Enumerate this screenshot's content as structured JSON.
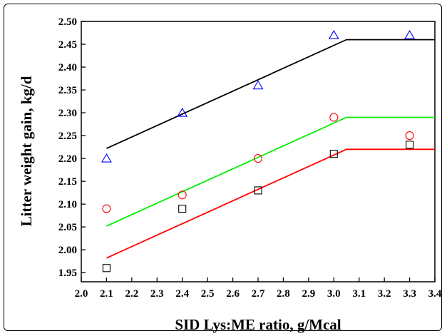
{
  "chart_data": {
    "type": "scatter",
    "xlabel": "SID Lys:ME ratio, g/Mcal",
    "ylabel": "Litter weight gain, kg/d",
    "xlim": [
      2.0,
      3.4
    ],
    "ylim": [
      1.93,
      2.5
    ],
    "x_ticks": [
      "2.0",
      "2.1",
      "2.2",
      "2.3",
      "2.4",
      "2.5",
      "2.6",
      "2.7",
      "2.8",
      "2.9",
      "3.0",
      "3.1",
      "3.2",
      "3.3",
      "3.4"
    ],
    "y_ticks": [
      "1.95",
      "2.00",
      "2.05",
      "2.10",
      "2.15",
      "2.20",
      "2.25",
      "2.30",
      "2.35",
      "2.40",
      "2.45",
      "2.50"
    ],
    "grid": false,
    "legend": "none",
    "series": [
      {
        "marker": "triangle",
        "color": "#0000ff",
        "x": [
          2.1,
          2.4,
          2.7,
          3.0,
          3.3
        ],
        "y": [
          2.2,
          2.3,
          2.36,
          2.47,
          2.47
        ],
        "fit": {
          "color": "#000000",
          "x": [
            2.1,
            3.05,
            3.4
          ],
          "y": [
            2.222,
            2.46,
            2.46
          ]
        }
      },
      {
        "marker": "circle",
        "color": "#ff0000",
        "x": [
          2.1,
          2.4,
          2.7,
          3.0,
          3.3
        ],
        "y": [
          2.09,
          2.12,
          2.2,
          2.29,
          2.25
        ],
        "fit": {
          "color": "#00ee00",
          "x": [
            2.1,
            3.05,
            3.4
          ],
          "y": [
            2.052,
            2.29,
            2.29
          ]
        }
      },
      {
        "marker": "square",
        "color": "#000000",
        "x": [
          2.1,
          2.4,
          2.7,
          3.0,
          3.3
        ],
        "y": [
          1.96,
          2.09,
          2.13,
          2.21,
          2.23
        ],
        "fit": {
          "color": "#ff0000",
          "x": [
            2.1,
            3.05,
            3.4
          ],
          "y": [
            1.982,
            2.22,
            2.22
          ]
        }
      }
    ]
  }
}
